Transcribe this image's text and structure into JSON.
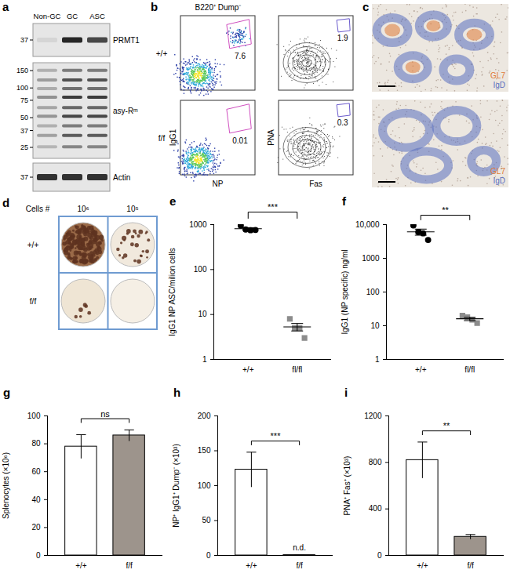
{
  "figure": {
    "a": {
      "label": "a",
      "columns": [
        "Non-GC",
        "GC",
        "ASC"
      ],
      "blots": [
        {
          "name": "PRMT1",
          "markers": [
            37
          ]
        },
        {
          "name": "asy-Rᵐ",
          "markers": [
            150,
            100,
            75,
            50,
            37,
            25
          ]
        },
        {
          "name": "Actin",
          "markers": [
            37
          ]
        }
      ]
    },
    "b": {
      "label": "b",
      "title": "B220⁺ Dump⁻",
      "rows": [
        "+/+",
        "f/f"
      ],
      "plots": [
        {
          "x": "NP",
          "y": "IgG1",
          "gates": [
            7.6,
            0.01
          ]
        },
        {
          "x": "Fas",
          "y": "PNA",
          "gates": [
            1.9,
            0.3
          ]
        }
      ]
    },
    "c": {
      "label": "c",
      "legend": [
        {
          "text": "GL7",
          "color": "#e07b39"
        },
        {
          "text": "IgD",
          "color": "#5a6fc0"
        }
      ]
    },
    "d": {
      "label": "d",
      "header": "Cells #",
      "columns": [
        "10⁶",
        "10⁵"
      ],
      "rows": [
        "+/+",
        "f/f"
      ]
    }
  },
  "chart_data": [
    {
      "type": "scatter",
      "title": "e",
      "categories": [
        "+/+",
        "fl/fl"
      ],
      "values": [
        [
          950,
          780,
          750,
          760
        ],
        [
          8,
          5,
          5,
          3
        ]
      ],
      "mean": [
        810,
        5.3
      ],
      "error": [
        45,
        1.0
      ],
      "colors": [
        "#000000",
        "#8c8c8c"
      ],
      "marker": [
        "circle",
        "square"
      ],
      "log": "y",
      "ylim": [
        1,
        1000
      ],
      "yticks": [
        1,
        10,
        100,
        1000
      ],
      "y_label": "IgG1 NP ASC/milion cells",
      "significance": "***"
    },
    {
      "type": "scatter",
      "title": "f",
      "categories": [
        "+/+",
        "fl/fl"
      ],
      "values": [
        [
          9500,
          6000,
          5500,
          3500
        ],
        [
          20,
          18,
          15,
          12
        ]
      ],
      "mean": [
        6100,
        16
      ],
      "error": [
        1250,
        1.8
      ],
      "colors": [
        "#000000",
        "#8c8c8c"
      ],
      "marker": [
        "circle",
        "square"
      ],
      "log": "y",
      "ylim": [
        1,
        10000
      ],
      "yticks": [
        1,
        10,
        100,
        1000,
        {
          "value": 10000,
          "label": "10,000"
        }
      ],
      "y_label": "IgG1 (NP specific) ng/ml",
      "significance": "**"
    },
    {
      "type": "bar",
      "title": "g",
      "categories": [
        "+/+",
        "f/f"
      ],
      "values": [
        78,
        86
      ],
      "error": [
        8.5,
        4
      ],
      "colors": [
        "#ffffff",
        "#9d948c"
      ],
      "ylim": [
        0,
        100
      ],
      "yticks": [
        0,
        20,
        40,
        60,
        80,
        100
      ],
      "y_label": "Splenocytes (×10⁶)",
      "significance": "ns"
    },
    {
      "type": "bar",
      "title": "h",
      "categories": [
        "+/+",
        "f/f"
      ],
      "values": [
        123,
        0.5
      ],
      "error": [
        25,
        0
      ],
      "colors": [
        "#ffffff",
        "#9d948c"
      ],
      "ylim": [
        0,
        200
      ],
      "yticks": [
        0,
        50,
        100,
        150,
        200
      ],
      "y_label": "NP⁺ IgG1⁺ Dump⁻ (×10³)",
      "significance": "***",
      "annotations": [
        {
          "category": "f/f",
          "text": "n.d."
        }
      ]
    },
    {
      "type": "bar",
      "title": "i",
      "categories": [
        "+/+",
        "f/f"
      ],
      "values": [
        820,
        160
      ],
      "error": [
        155,
        20
      ],
      "colors": [
        "#ffffff",
        "#9d948c"
      ],
      "ylim": [
        0,
        1200
      ],
      "yticks": [
        0,
        400,
        800,
        1200
      ],
      "y_label": "PNA⁺ Fas⁺ (×10³)",
      "significance": "**"
    }
  ]
}
